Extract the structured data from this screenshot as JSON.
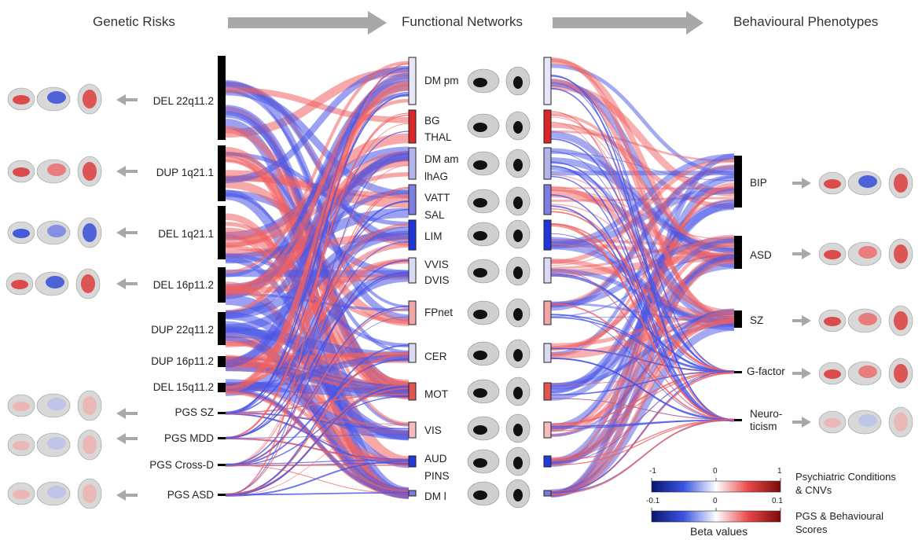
{
  "headers": {
    "genetic": "Genetic Risks",
    "functional": "Functional Networks",
    "behavioural": "Behavioural Phenotypes"
  },
  "genetic_risks": [
    "DEL 22q11.2",
    "DUP 1q21.1",
    "DEL 1q21.1",
    "DEL 16p11.2",
    "DUP 22q11.2",
    "DUP 16p11.2",
    "DEL 15q11.2",
    "PGS SZ",
    "PGS MDD",
    "PGS Cross-D",
    "PGS ASD"
  ],
  "networks": [
    {
      "labels": [
        "DM pm"
      ],
      "color": "#e6e6f8"
    },
    {
      "labels": [
        "BG",
        "THAL"
      ],
      "color": "#d9262b"
    },
    {
      "labels": [
        "DM am",
        "lhAG"
      ],
      "color": "#b4b4ec"
    },
    {
      "labels": [
        "VATT",
        "SAL"
      ],
      "color": "#7d7de2"
    },
    {
      "labels": [
        "LIM"
      ],
      "color": "#1f35d9"
    },
    {
      "labels": [
        "VVIS",
        "DVIS"
      ],
      "color": "#dadaf4"
    },
    {
      "labels": [
        "FPnet"
      ],
      "color": "#f1a6a6"
    },
    {
      "labels": [
        "CER"
      ],
      "color": "#dadaf4"
    },
    {
      "labels": [
        "MOT"
      ],
      "color": "#e05555"
    },
    {
      "labels": [
        "VIS"
      ],
      "color": "#f4bcbc"
    },
    {
      "labels": [
        "AUD",
        "PINS"
      ],
      "color": "#2439db"
    },
    {
      "labels": [
        "DM l"
      ],
      "color": "#7a7ae0"
    }
  ],
  "phenotypes": [
    "BIP",
    "ASD",
    "SZ",
    "G-factor",
    "Neuro-\nticism"
  ],
  "legend": {
    "row1_ticks": [
      "-1",
      "0",
      "1"
    ],
    "row1_label": "Psychiatric Conditions\n& CNVs",
    "row2_ticks": [
      "-0.1",
      "0",
      "0.1"
    ],
    "row2_label": "PGS & Behavioural\nScores",
    "title": "Beta values"
  },
  "colors": {
    "positive": "#f06060",
    "negative": "#4a55e6",
    "arrow": "#a8a8a8",
    "node": "#000000"
  }
}
